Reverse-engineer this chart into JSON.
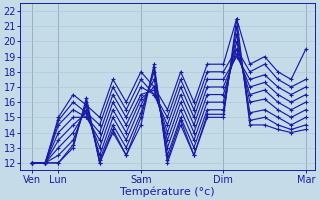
{
  "xlabel": "Température (°c)",
  "ylim": [
    11.5,
    22.5
  ],
  "xlim": [
    0.0,
    1.0
  ],
  "yticks": [
    12,
    13,
    14,
    15,
    16,
    17,
    18,
    19,
    20,
    21,
    22
  ],
  "xtick_positions": [
    0.04,
    0.13,
    0.41,
    0.69,
    0.97
  ],
  "xtick_labels": [
    "Ven",
    "Lun",
    "Sam",
    "Dim",
    "Mar"
  ],
  "bg_color": "#c5dce8",
  "line_color": "#1a1aaa",
  "grid_color": "#a8c8d8",
  "marker": "+",
  "linewidth": 0.85,
  "markersize": 3.0,
  "x_points": [
    0.04,
    0.085,
    0.13,
    0.18,
    0.225,
    0.27,
    0.315,
    0.36,
    0.41,
    0.455,
    0.5,
    0.545,
    0.59,
    0.635,
    0.69,
    0.735,
    0.78,
    0.83,
    0.875,
    0.92,
    0.97
  ],
  "forecast_lines": [
    [
      12.0,
      12.0,
      12.0,
      13.0,
      16.3,
      12.0,
      14.0,
      12.5,
      14.5,
      18.5,
      12.0,
      14.5,
      12.5,
      15.0,
      15.0,
      21.5,
      14.5,
      14.5,
      14.2,
      14.0,
      14.2
    ],
    [
      12.0,
      12.0,
      12.0,
      13.2,
      16.0,
      12.0,
      14.2,
      12.5,
      15.0,
      18.3,
      12.2,
      14.8,
      12.5,
      15.2,
      15.2,
      21.0,
      14.8,
      15.0,
      14.5,
      14.2,
      14.5
    ],
    [
      12.0,
      12.0,
      12.5,
      13.5,
      15.8,
      12.2,
      14.5,
      13.0,
      15.3,
      18.0,
      12.5,
      15.0,
      13.0,
      15.5,
      15.5,
      20.5,
      15.3,
      15.5,
      15.0,
      14.5,
      15.0
    ],
    [
      12.0,
      12.0,
      13.0,
      14.0,
      15.5,
      12.5,
      15.0,
      13.5,
      15.8,
      17.5,
      13.0,
      15.5,
      13.5,
      16.0,
      16.0,
      20.0,
      16.0,
      16.2,
      15.5,
      15.0,
      15.5
    ],
    [
      12.0,
      12.0,
      13.5,
      14.5,
      15.3,
      13.0,
      15.5,
      14.0,
      16.2,
      17.0,
      13.5,
      16.0,
      14.0,
      16.5,
      16.5,
      19.5,
      16.5,
      16.8,
      16.0,
      15.5,
      16.0
    ],
    [
      12.0,
      12.0,
      14.0,
      15.0,
      15.0,
      13.5,
      16.0,
      14.5,
      16.5,
      16.8,
      14.0,
      16.5,
      14.5,
      17.0,
      17.0,
      19.2,
      17.0,
      17.3,
      16.5,
      16.0,
      16.5
    ],
    [
      12.0,
      12.0,
      14.5,
      15.5,
      15.0,
      14.0,
      16.5,
      15.0,
      17.0,
      16.5,
      14.5,
      17.0,
      15.0,
      17.5,
      17.5,
      19.0,
      17.5,
      17.8,
      17.0,
      16.5,
      17.0
    ],
    [
      12.0,
      12.0,
      14.8,
      16.0,
      15.3,
      14.5,
      17.0,
      15.5,
      17.5,
      16.5,
      15.0,
      17.5,
      15.5,
      18.0,
      18.0,
      19.5,
      18.0,
      18.5,
      17.5,
      17.0,
      17.5
    ],
    [
      12.0,
      12.0,
      15.0,
      16.5,
      15.8,
      15.0,
      17.5,
      16.0,
      18.0,
      17.0,
      15.5,
      18.0,
      16.0,
      18.5,
      18.5,
      21.5,
      18.5,
      19.0,
      18.0,
      17.5,
      19.5
    ]
  ]
}
